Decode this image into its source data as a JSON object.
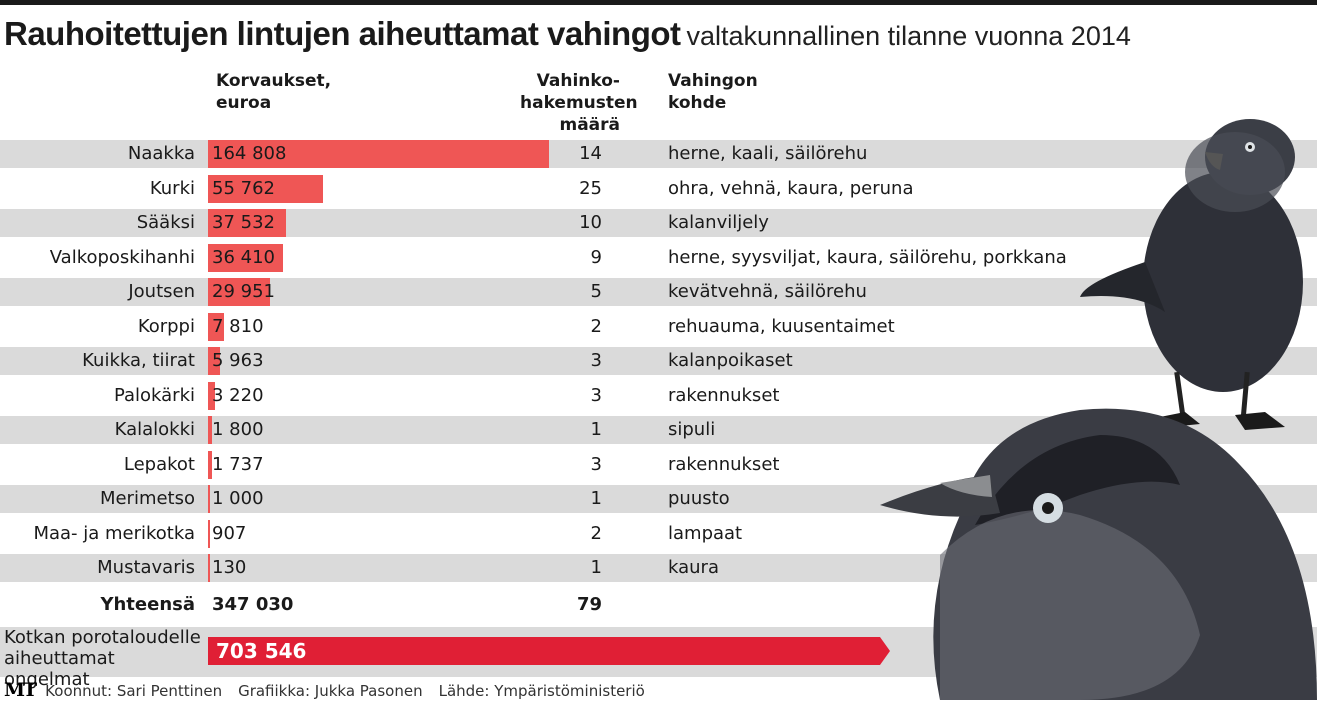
{
  "title": "Rauhoitettujen lintujen aiheuttamat vahingot",
  "subtitle": "valtakunnallinen tilanne vuonna 2014",
  "headers": {
    "compensation": "Korvaukset,\neuroa",
    "applications": "Vahinko-\nhakemusten\nmäärä",
    "target": "Vahingon\nkohde"
  },
  "colors": {
    "bar": "#ef5655",
    "special_bar": "#e01f35",
    "stripe": "#dadada",
    "topbar": "#1a1a1a"
  },
  "chart_data": {
    "type": "bar",
    "orientation": "horizontal",
    "categories": [
      "Naakka",
      "Kurki",
      "Sääksi",
      "Valkoposkihanhi",
      "Joutsen",
      "Korppi",
      "Kuikka, tiirat",
      "Palokärki",
      "Kalalokki",
      "Lepakot",
      "Merimetso",
      "Maa- ja merikotka",
      "Mustavaris"
    ],
    "values": [
      164808,
      55762,
      37532,
      36410,
      29951,
      7810,
      5963,
      3220,
      1800,
      1737,
      1000,
      907,
      130
    ],
    "value_labels": [
      "164 808",
      "55 762",
      "37 532",
      "36 410",
      "29 951",
      "7 810",
      "5 963",
      "3 220",
      "1 800",
      "1 737",
      "1 000",
      "907",
      "130"
    ],
    "applications": [
      "14",
      "25",
      "10",
      "9",
      "5",
      "2",
      "3",
      "3",
      "1",
      "3",
      "1",
      "2",
      "1"
    ],
    "targets": [
      "herne, kaali, säilörehu",
      "ohra, vehnä, kaura, peruna",
      "kalanviljely",
      "herne, syysviljat, kaura, säilörehu, porkkana",
      "kevätvehnä, säilörehu",
      "rehuauma, kuusentaimet",
      "kalanpoikaset",
      "rakennukset",
      "sipuli",
      "rakennukset",
      "puusto",
      "lampaat",
      "kaura"
    ],
    "total": {
      "label": "Yhteensä",
      "value": "347 030",
      "applications": "79"
    },
    "special": {
      "label": "Kotkan porotaloudelle\naiheuttamat ongelmat",
      "value": 703546,
      "value_label": "703 546"
    }
  },
  "footer": {
    "logo": "MT",
    "compiled": "Koonnut: Sari Penttinen",
    "graphics": "Grafiikka: Jukka Pasonen",
    "source": "Lähde: Ympäristöministeriö"
  }
}
